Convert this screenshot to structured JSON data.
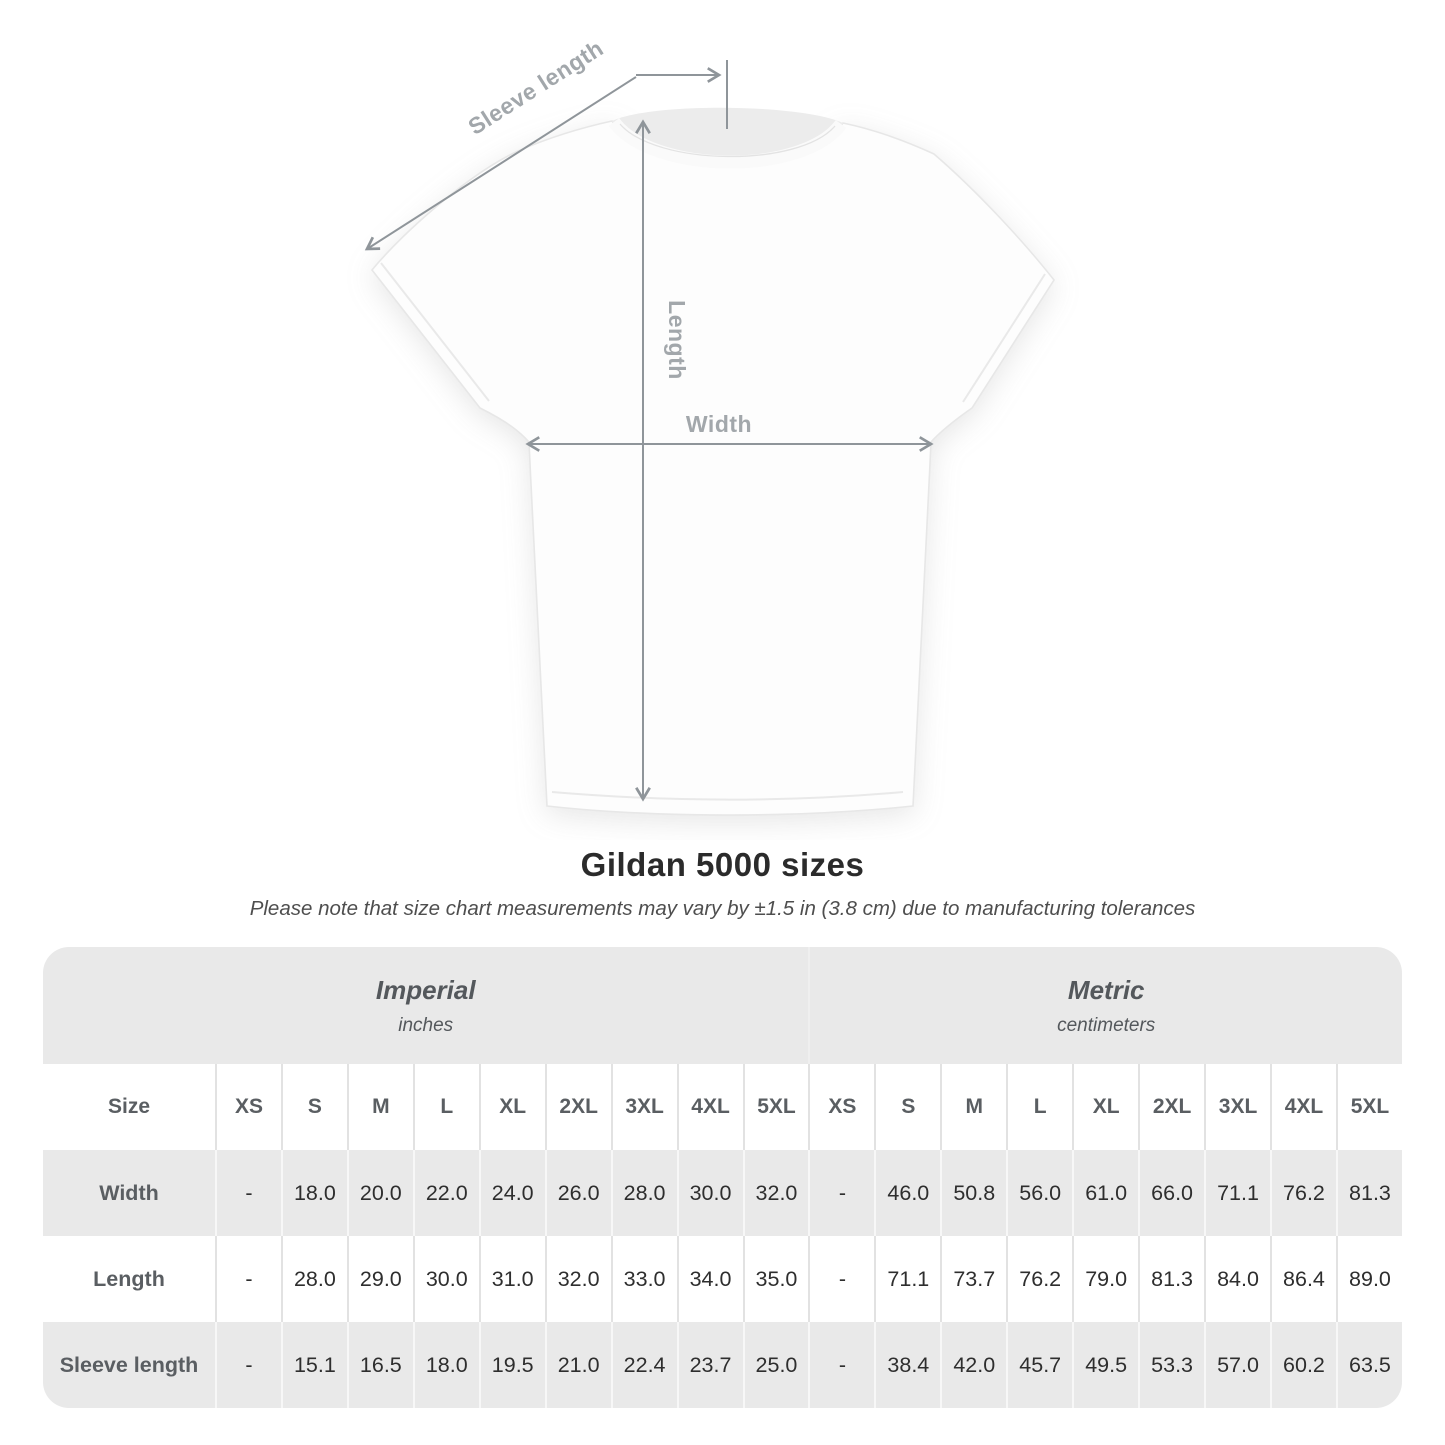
{
  "diagram": {
    "sleeve_length_label": "Sleeve length",
    "length_label": "Length",
    "width_label": "Width"
  },
  "heading": {
    "title": "Gildan 5000 sizes",
    "note": "Please note that size chart measurements may vary by ±1.5 in (3.8 cm) due to manufacturing tolerances"
  },
  "chart_data": {
    "type": "table",
    "title": "Gildan 5000 sizes",
    "subtitle": "Please note that size chart measurements may vary by ±1.5 in (3.8 cm) due to manufacturing tolerances",
    "unit_groups": [
      {
        "name": "Imperial",
        "unit": "inches"
      },
      {
        "name": "Metric",
        "unit": "centimeters"
      }
    ],
    "size_header_label": "Size",
    "sizes": [
      "XS",
      "S",
      "M",
      "L",
      "XL",
      "2XL",
      "3XL",
      "4XL",
      "5XL"
    ],
    "measurements": [
      {
        "label": "Width",
        "imperial": [
          "-",
          "18.0",
          "20.0",
          "22.0",
          "24.0",
          "26.0",
          "28.0",
          "30.0",
          "32.0"
        ],
        "metric": [
          "-",
          "46.0",
          "50.8",
          "56.0",
          "61.0",
          "66.0",
          "71.1",
          "76.2",
          "81.3"
        ]
      },
      {
        "label": "Length",
        "imperial": [
          "-",
          "28.0",
          "29.0",
          "30.0",
          "31.0",
          "32.0",
          "33.0",
          "34.0",
          "35.0"
        ],
        "metric": [
          "-",
          "71.1",
          "73.7",
          "76.2",
          "79.0",
          "81.3",
          "84.0",
          "86.4",
          "89.0"
        ]
      },
      {
        "label": "Sleeve length",
        "imperial": [
          "-",
          "15.1",
          "16.5",
          "18.0",
          "19.5",
          "21.0",
          "22.4",
          "23.7",
          "25.0"
        ],
        "metric": [
          "-",
          "38.4",
          "42.0",
          "45.7",
          "49.5",
          "53.3",
          "57.0",
          "60.2",
          "63.5"
        ]
      }
    ]
  },
  "colors": {
    "table_band_gray": "#e9e9e9",
    "value_text": "#2e2e2e",
    "label_text": "#5a5e62",
    "arrow_gray": "#8f959a",
    "diagram_label_gray": "#a2a7ab"
  }
}
